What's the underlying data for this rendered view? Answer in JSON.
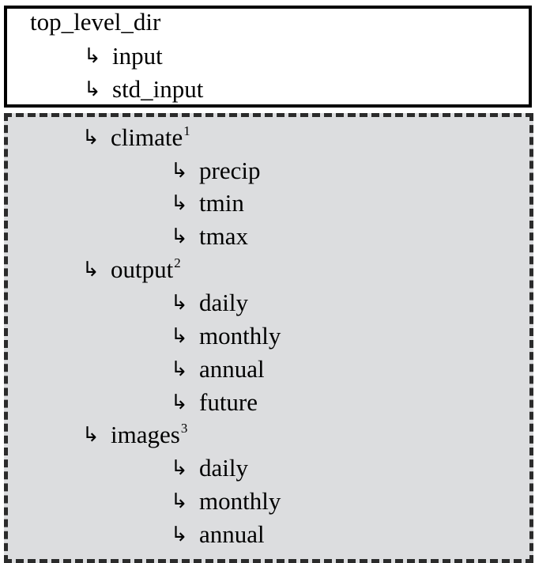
{
  "top_box": {
    "root": "top_level_dir",
    "children": [
      "input",
      "std_input"
    ]
  },
  "bottom_box": {
    "groups": [
      {
        "name": "climate",
        "sup": "1",
        "children": [
          "precip",
          "tmin",
          "tmax"
        ]
      },
      {
        "name": "output",
        "sup": "2",
        "children": [
          "daily",
          "monthly",
          "annual",
          "future"
        ]
      },
      {
        "name": "images",
        "sup": "3",
        "children": [
          "daily",
          "monthly",
          "annual"
        ]
      }
    ]
  },
  "arrow_glyph": "↳",
  "colors": {
    "dashed_panel_bg": "#dcdddf",
    "border": "#000000"
  }
}
